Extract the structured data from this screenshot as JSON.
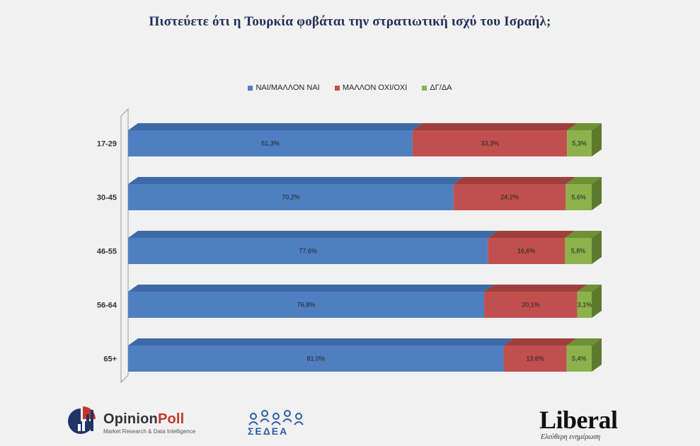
{
  "title": "Πιστεύετε ότι η Τουρκία φοβάται την στρατιωτική ισχύ του Ισραήλ;",
  "colors": {
    "yes": "#4f7fc0",
    "no": "#c0504d",
    "dk": "#8cb24b",
    "yes_top": "#3d6aa6",
    "no_top": "#9e3f3c",
    "dk_top": "#6f9036",
    "dk_side": "#5d7a2c"
  },
  "chart_data": {
    "type": "bar",
    "orientation": "horizontal",
    "stacked": true,
    "categories": [
      "17-29",
      "30-45",
      "46-55",
      "56-64",
      "65+"
    ],
    "series": [
      {
        "name": "ΝΑΙ/ΜΑΛΛΟΝ ΝΑΙ",
        "values": [
          61.3,
          70.2,
          77.6,
          76.8,
          81.0
        ],
        "labels": [
          "61,3%",
          "70,2%",
          "77,6%",
          "76,8%",
          "81,0%"
        ]
      },
      {
        "name": "ΜΑΛΛΟΝ ΟΧΙ/ΟΧΙ",
        "values": [
          33.3,
          24.2,
          16.6,
          20.1,
          13.6
        ],
        "labels": [
          "33,3%",
          "24,2%",
          "16,6%",
          "20,1%",
          "13,6%"
        ]
      },
      {
        "name": "ΔΓ/ΔΑ",
        "values": [
          5.3,
          5.6,
          5.8,
          3.1,
          5.4
        ],
        "labels": [
          "5,3%",
          "5,6%",
          "5,8%",
          "3,1%",
          "5,4%"
        ]
      }
    ],
    "xlim": [
      0,
      100
    ],
    "legend": "top-center",
    "grid": false
  },
  "footer": {
    "opinionpoll_name_a": "Opinion",
    "opinionpoll_name_b": "Poll",
    "opinionpoll_tagline": "Market Research & Data Intelligence",
    "sedea": "ΣΕΔΕΑ",
    "liberal": "Liberal",
    "liberal_tagline": "Ελεύθερη ενημέρωση"
  }
}
